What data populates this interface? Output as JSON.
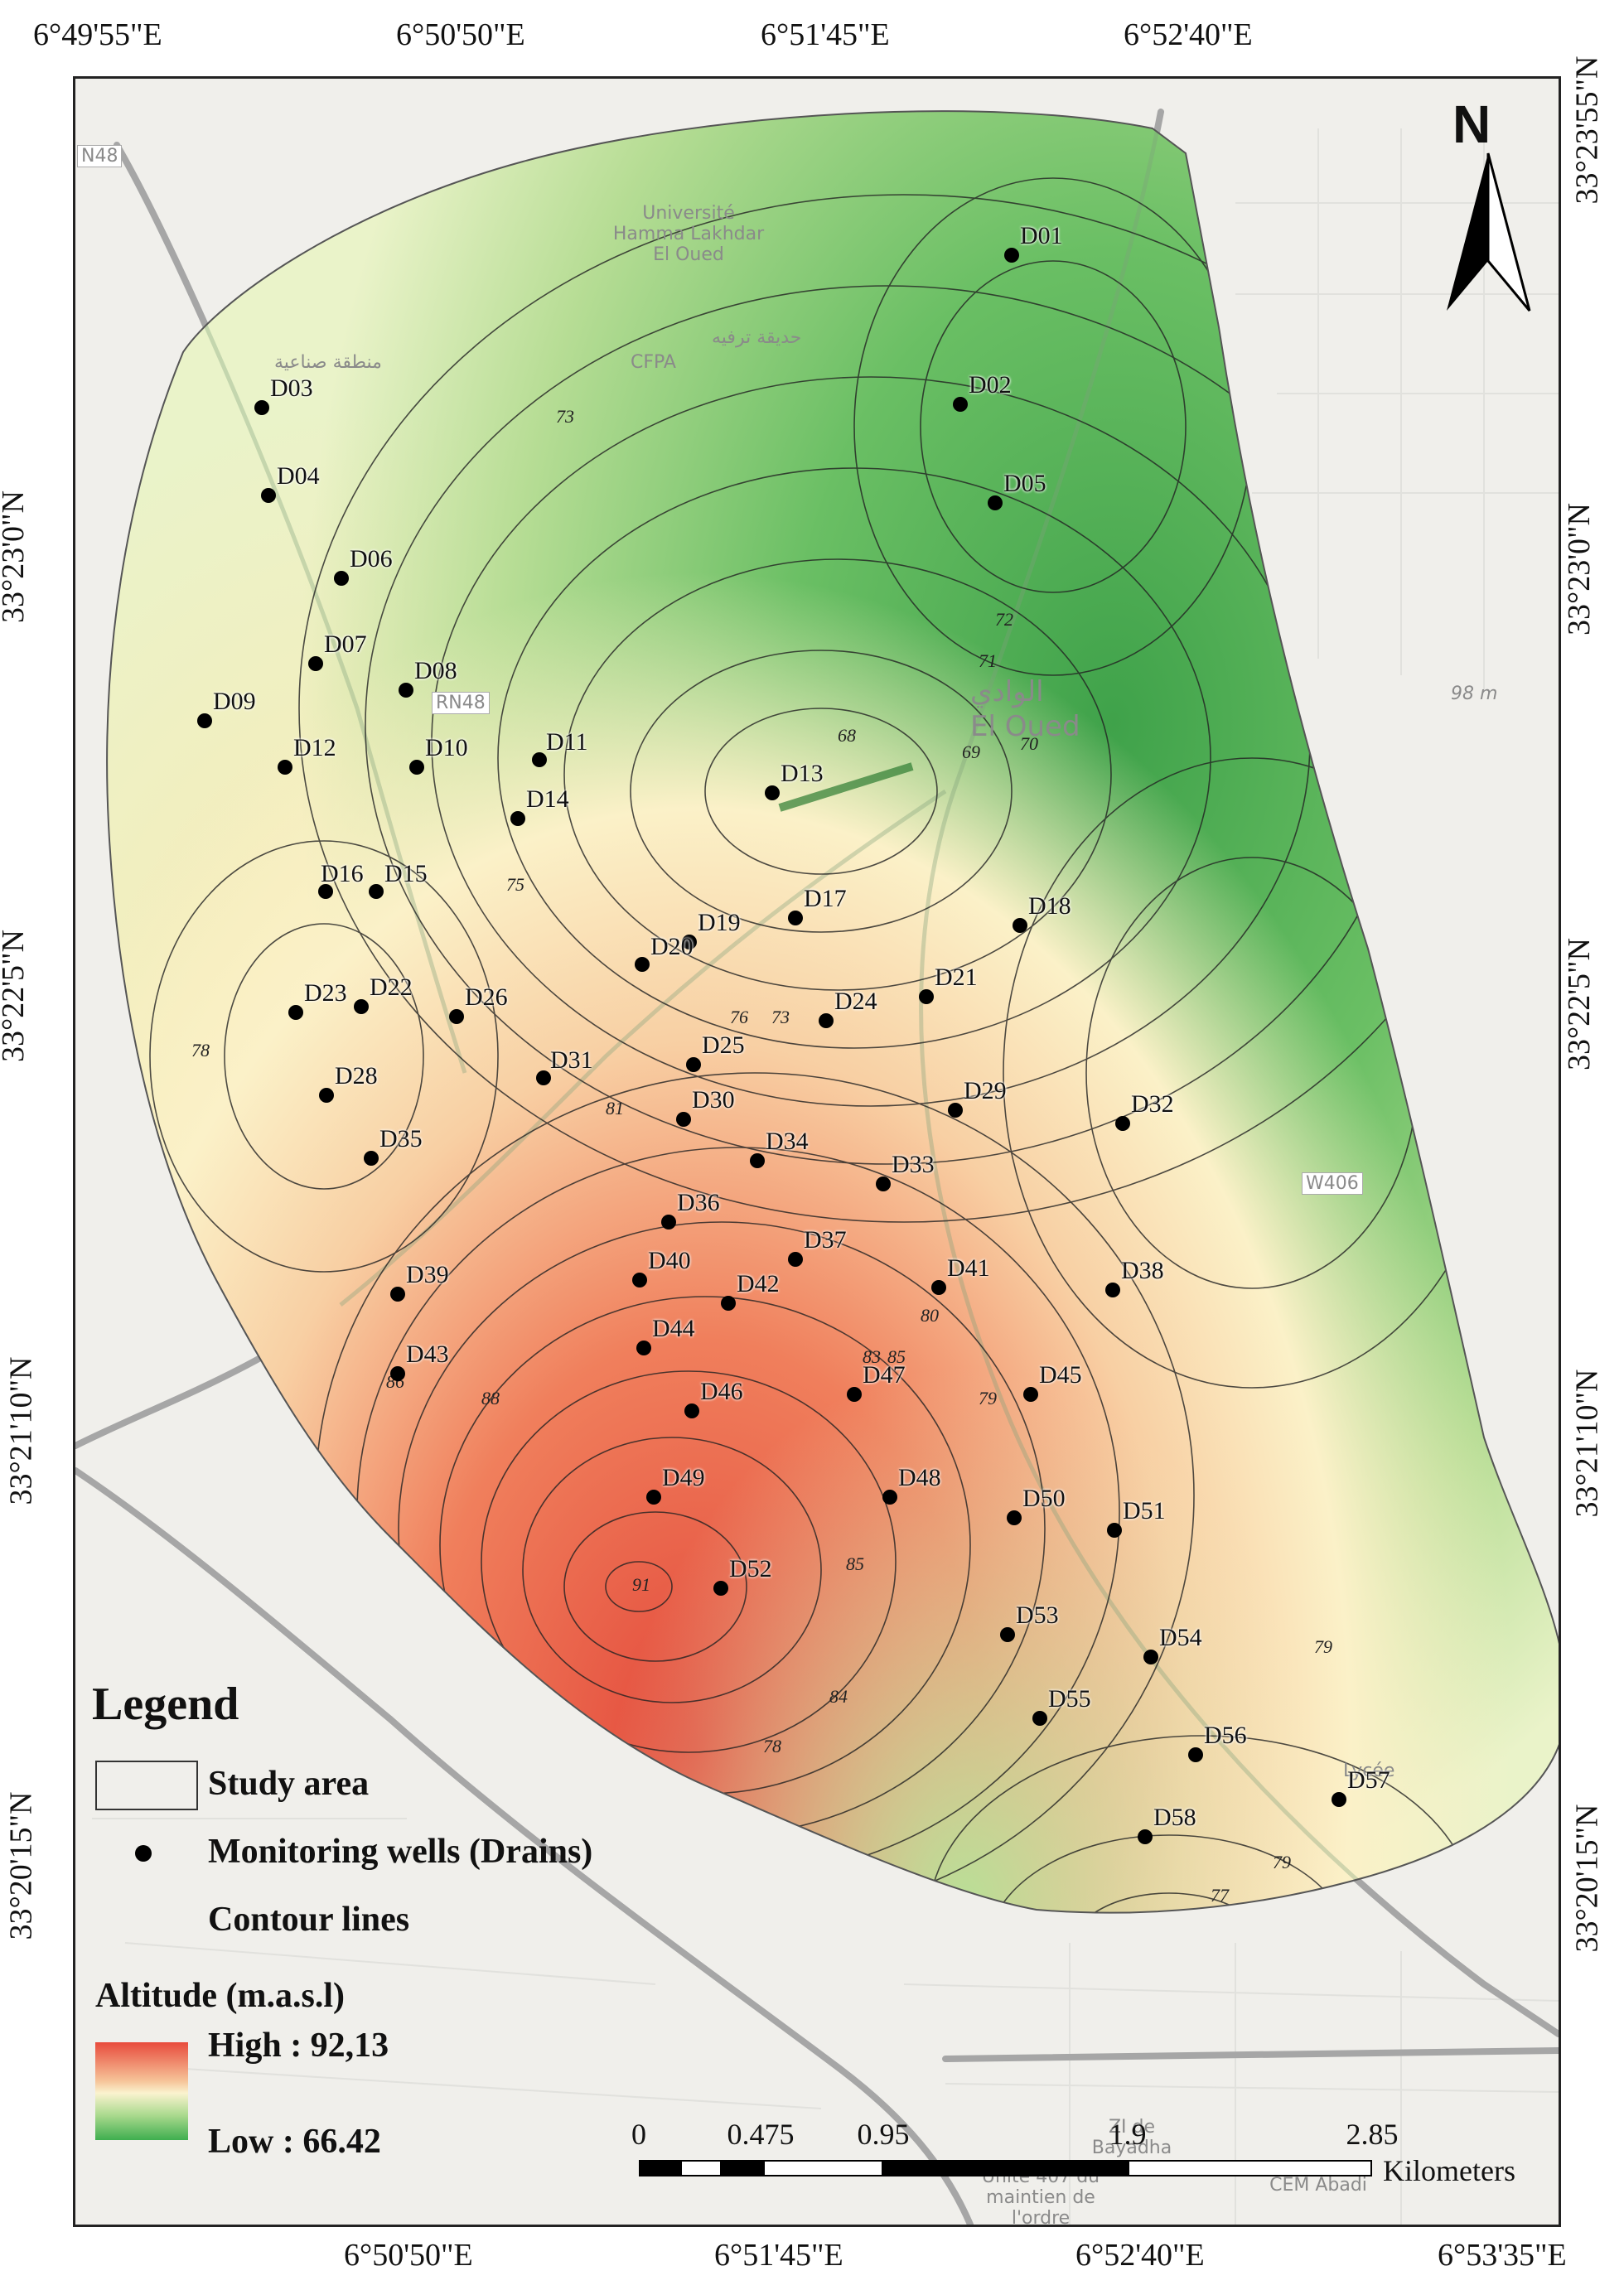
{
  "graticule": {
    "top": [
      "6°49'55\"E",
      "6°50'50\"E",
      "6°51'45\"E",
      "6°52'40\"E"
    ],
    "bottom": [
      "6°50'50\"E",
      "6°51'45\"E",
      "6°52'40\"E",
      "6°53'35\"E"
    ],
    "left": [
      "33°23'0\"N",
      "33°22'5\"N",
      "33°21'10\"N",
      "33°20'15\"N"
    ],
    "right": [
      "33°23'55\"N",
      "33°23'0\"N",
      "33°22'5\"N",
      "33°21'10\"N",
      "33°20'15\"N"
    ]
  },
  "north_arrow": {
    "letter": "N"
  },
  "wells": [
    {
      "id": "D01"
    },
    {
      "id": "D02"
    },
    {
      "id": "D03"
    },
    {
      "id": "D04"
    },
    {
      "id": "D05"
    },
    {
      "id": "D06"
    },
    {
      "id": "D07"
    },
    {
      "id": "D08"
    },
    {
      "id": "D09"
    },
    {
      "id": "D10"
    },
    {
      "id": "D11"
    },
    {
      "id": "D12"
    },
    {
      "id": "D13"
    },
    {
      "id": "D14"
    },
    {
      "id": "D15"
    },
    {
      "id": "D16"
    },
    {
      "id": "D17"
    },
    {
      "id": "D18"
    },
    {
      "id": "D19"
    },
    {
      "id": "D20"
    },
    {
      "id": "D21"
    },
    {
      "id": "D22"
    },
    {
      "id": "D23"
    },
    {
      "id": "D24"
    },
    {
      "id": "D25"
    },
    {
      "id": "D26"
    },
    {
      "id": "D28"
    },
    {
      "id": "D29"
    },
    {
      "id": "D30"
    },
    {
      "id": "D31"
    },
    {
      "id": "D32"
    },
    {
      "id": "D33"
    },
    {
      "id": "D34"
    },
    {
      "id": "D35"
    },
    {
      "id": "D36"
    },
    {
      "id": "D37"
    },
    {
      "id": "D38"
    },
    {
      "id": "D39"
    },
    {
      "id": "D40"
    },
    {
      "id": "D41"
    },
    {
      "id": "D42"
    },
    {
      "id": "D43"
    },
    {
      "id": "D44"
    },
    {
      "id": "D45"
    },
    {
      "id": "D46"
    },
    {
      "id": "D47"
    },
    {
      "id": "D48"
    },
    {
      "id": "D49"
    },
    {
      "id": "D50"
    },
    {
      "id": "D51"
    },
    {
      "id": "D52"
    },
    {
      "id": "D53"
    },
    {
      "id": "D54"
    },
    {
      "id": "D55"
    },
    {
      "id": "D56"
    },
    {
      "id": "D57"
    },
    {
      "id": "D58"
    }
  ],
  "contour_labels": [
    "71",
    "72",
    "73",
    "73",
    "69",
    "68",
    "70",
    "75",
    "76",
    "78",
    "81",
    "80",
    "79",
    "83",
    "85",
    "88",
    "86",
    "91",
    "85",
    "84",
    "78",
    "79",
    "77",
    "79"
  ],
  "basemap_labels": [
    "Université Hamma Lakhdar El Oued",
    "CFPA",
    "حديقة ترفيه",
    "منطقة صناعية",
    "الوادي",
    "El Oued",
    "98 m",
    "W406",
    "N48",
    "RN48",
    "Lycée",
    "ZI de Bayadha",
    "Unité 407 du maintien de l'ordre",
    "CEM Abadi"
  ],
  "legend": {
    "title": "Legend",
    "study_area": "Study area",
    "wells": "Monitoring wells (Drains)",
    "contours": "Contour lines",
    "altitude_title": "Altitude (m.a.s.l)",
    "high": "High : 92,13",
    "low": "Low : 66.42",
    "ramp_colors": [
      "#e84b3c",
      "#f6c59a",
      "#faf3cf",
      "#a9d98d",
      "#3fae4f"
    ]
  },
  "scale_bar": {
    "ticks": [
      "0",
      "0.475",
      "0.95",
      "1.9",
      "2.85"
    ],
    "unit": "Kilometers"
  },
  "colors": {
    "high": "#e84b3c",
    "low": "#3fae4f"
  }
}
